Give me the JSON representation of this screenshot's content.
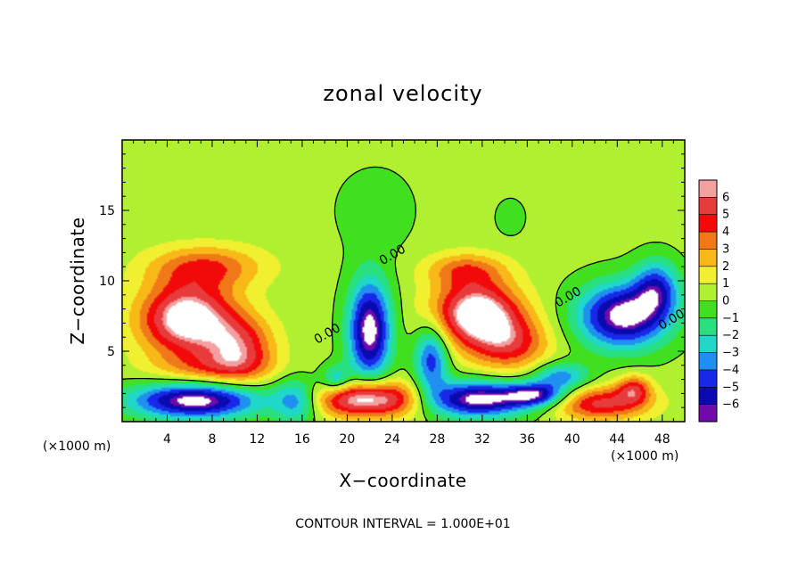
{
  "chart_data": {
    "type": "heatmap",
    "title": "zonal velocity",
    "xlabel": "X−coordinate",
    "ylabel": "Z−coordinate",
    "x_unit_left": "(×1000 m)",
    "x_unit_right": "(×1000 m)",
    "xlim": [
      0,
      50
    ],
    "ylim": [
      0,
      20
    ],
    "xticks": [
      4,
      8,
      12,
      16,
      20,
      24,
      28,
      32,
      36,
      40,
      44,
      48
    ],
    "yticks": [
      5,
      10,
      15
    ],
    "contour_interval_text": "CONTOUR INTERVAL = 1.000E+01",
    "contour_labels": [
      {
        "text": "0.00",
        "x": 18.4,
        "y": 6.0
      },
      {
        "text": "0.00",
        "x": 24.2,
        "y": 11.6
      },
      {
        "text": "0.00",
        "x": 39.8,
        "y": 8.6
      },
      {
        "text": "0.00",
        "x": 49.0,
        "y": 7.0
      }
    ],
    "colorbar": {
      "ticks": [
        "6",
        "5",
        "4",
        "3",
        "2",
        "1",
        "0",
        "−1",
        "−2",
        "−3",
        "−4",
        "−5",
        "−6"
      ],
      "colors": [
        "#f2a0a0",
        "#e83c3c",
        "#f20a0a",
        "#f07818",
        "#f8b818",
        "#f0f030",
        "#b0f030",
        "#40e020",
        "#28e080",
        "#20d8c8",
        "#2090f0",
        "#1828e8",
        "#0a0ab0",
        "#700aa8"
      ]
    },
    "positive_cores": [
      {
        "x": 5.8,
        "y": 7.3,
        "rx": 4.2,
        "ry": 2.6,
        "amp": 7.5
      },
      {
        "x": 10.5,
        "y": 5.2,
        "rx": 3.0,
        "ry": 2.2,
        "amp": 4.5
      },
      {
        "x": 7.5,
        "y": 11.0,
        "rx": 5.0,
        "ry": 1.5,
        "amp": 3.5
      },
      {
        "x": 31.5,
        "y": 7.7,
        "rx": 3.8,
        "ry": 2.3,
        "amp": 7.5
      },
      {
        "x": 34.5,
        "y": 5.5,
        "rx": 3.5,
        "ry": 2.0,
        "amp": 4.0
      },
      {
        "x": 30.5,
        "y": 10.8,
        "rx": 3.5,
        "ry": 1.2,
        "amp": 3.0
      },
      {
        "x": 22.0,
        "y": 1.6,
        "rx": 4.8,
        "ry": 1.3,
        "amp": 7.5
      },
      {
        "x": 42.5,
        "y": 1.3,
        "rx": 4.2,
        "ry": 1.2,
        "amp": 5.0
      },
      {
        "x": 45.5,
        "y": 2.3,
        "rx": 1.5,
        "ry": 1.0,
        "amp": 4.0
      },
      {
        "x": 8.0,
        "y": 3.8,
        "rx": 5.0,
        "ry": 1.2,
        "amp": 2.5
      }
    ],
    "negative_cores": [
      {
        "x": 22.0,
        "y": 6.5,
        "rx": 1.9,
        "ry": 3.6,
        "amp": -7.5
      },
      {
        "x": 44.5,
        "y": 7.5,
        "rx": 4.0,
        "ry": 2.3,
        "amp": -7.5
      },
      {
        "x": 47.5,
        "y": 9.5,
        "rx": 2.0,
        "ry": 2.0,
        "amp": -4.5
      },
      {
        "x": 6.5,
        "y": 1.5,
        "rx": 5.8,
        "ry": 1.3,
        "amp": -7.5
      },
      {
        "x": 31.5,
        "y": 1.6,
        "rx": 4.8,
        "ry": 1.3,
        "amp": -7.5
      },
      {
        "x": 36.8,
        "y": 1.9,
        "rx": 2.6,
        "ry": 0.8,
        "amp": -5.5
      },
      {
        "x": 15.5,
        "y": 1.5,
        "rx": 2.0,
        "ry": 1.6,
        "amp": -4.0
      },
      {
        "x": 27.5,
        "y": 4.5,
        "rx": 1.5,
        "ry": 2.4,
        "amp": -5.0
      },
      {
        "x": 19.0,
        "y": 3.0,
        "rx": 1.3,
        "ry": 1.0,
        "amp": -3.5
      },
      {
        "x": 39.0,
        "y": 3.2,
        "rx": 2.5,
        "ry": 1.0,
        "amp": -4.0
      },
      {
        "x": 22.5,
        "y": 15.0,
        "rx": 3.5,
        "ry": 3.0,
        "amp": -1.0
      },
      {
        "x": 34.5,
        "y": 14.5,
        "rx": 1.5,
        "ry": 1.5,
        "amp": -0.8
      }
    ]
  }
}
